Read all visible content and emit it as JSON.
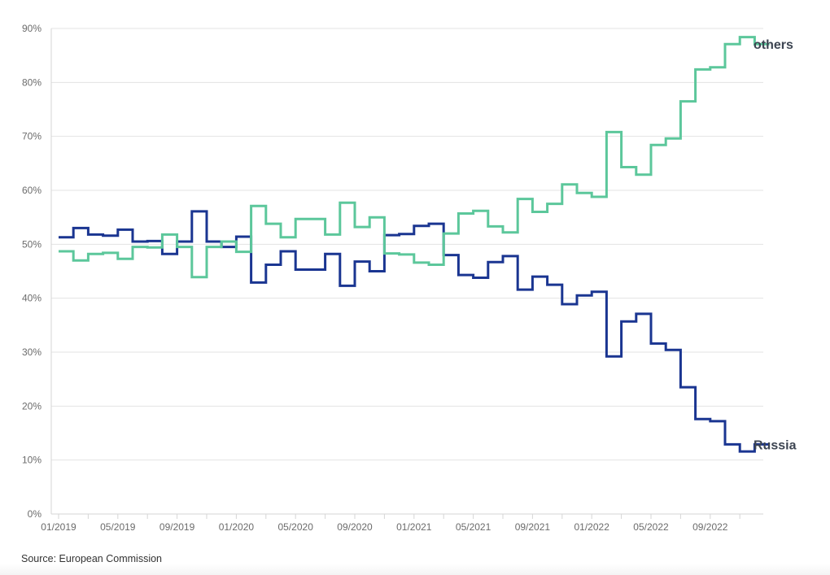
{
  "source_text": "Source: European Commission",
  "chart_data": {
    "type": "line",
    "step": true,
    "title": "",
    "xlabel": "",
    "ylabel": "",
    "ylim": [
      0,
      90
    ],
    "y_ticks": [
      "0%",
      "10%",
      "20%",
      "30%",
      "40%",
      "50%",
      "60%",
      "70%",
      "80%",
      "90%"
    ],
    "x_tick_labels": [
      "01/2019",
      "05/2019",
      "09/2019",
      "01/2020",
      "05/2020",
      "09/2020",
      "01/2021",
      "05/2021",
      "09/2021",
      "01/2022",
      "05/2022",
      "09/2022"
    ],
    "months": 48,
    "colors": {
      "Russia": "#1a3591",
      "others": "#5cc79b",
      "grid": "#e3e3e3",
      "axis": "#d6d6d6"
    },
    "series": [
      {
        "name": "Russia",
        "label": "Russia",
        "values": [
          51.3,
          53.0,
          51.8,
          51.6,
          52.7,
          50.5,
          50.6,
          48.2,
          50.5,
          56.1,
          50.5,
          49.5,
          51.4,
          42.9,
          46.2,
          48.7,
          45.3,
          45.3,
          48.2,
          42.3,
          46.8,
          45.0,
          51.7,
          51.9,
          53.4,
          53.8,
          48.0,
          44.3,
          43.8,
          46.7,
          47.8,
          41.6,
          44.0,
          42.5,
          38.9,
          40.5,
          41.2,
          29.2,
          35.7,
          37.1,
          31.6,
          30.4,
          23.5,
          17.6,
          17.2,
          12.9,
          11.6,
          12.9
        ]
      },
      {
        "name": "others",
        "label": "others",
        "values": [
          48.7,
          47.0,
          48.2,
          48.4,
          47.3,
          49.5,
          49.4,
          51.8,
          49.5,
          43.9,
          49.5,
          50.5,
          48.6,
          57.1,
          53.8,
          51.3,
          54.7,
          54.7,
          51.8,
          57.7,
          53.2,
          55.0,
          48.3,
          48.1,
          46.6,
          46.2,
          52.0,
          55.7,
          56.2,
          53.3,
          52.2,
          58.4,
          56.0,
          57.5,
          61.1,
          59.5,
          58.8,
          70.8,
          64.3,
          62.9,
          68.4,
          69.6,
          76.5,
          82.4,
          82.8,
          87.1,
          88.4,
          87.1
        ]
      }
    ]
  }
}
